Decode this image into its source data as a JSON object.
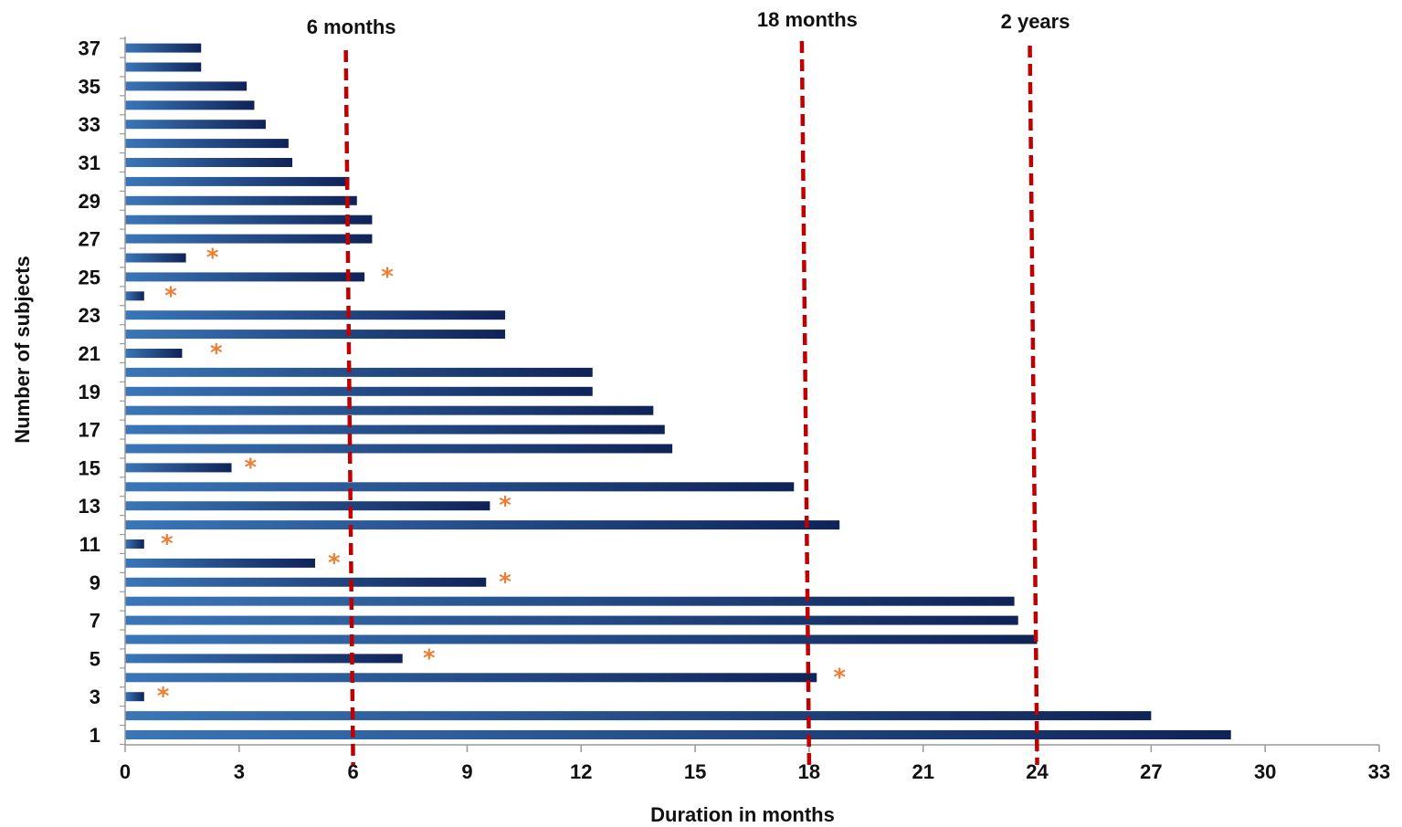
{
  "chart_data": {
    "type": "bar",
    "orientation": "horizontal",
    "xlabel": "Duration in months",
    "ylabel": "Number of subjects",
    "xlim": [
      0,
      33
    ],
    "xticks": [
      0,
      3,
      6,
      9,
      12,
      15,
      18,
      21,
      24,
      27,
      30,
      33
    ],
    "ytick_labels": [
      "1",
      "3",
      "5",
      "7",
      "9",
      "11",
      "13",
      "15",
      "17",
      "19",
      "21",
      "23",
      "25",
      "27",
      "29",
      "31",
      "33",
      "35",
      "37"
    ],
    "grid": false,
    "legend": "none",
    "categories": [
      1,
      2,
      3,
      4,
      5,
      6,
      7,
      8,
      9,
      10,
      11,
      12,
      13,
      14,
      15,
      16,
      17,
      18,
      19,
      20,
      21,
      22,
      23,
      24,
      25,
      26,
      27,
      28,
      29,
      30,
      31,
      32,
      33,
      34,
      35,
      36,
      37
    ],
    "values": [
      29.1,
      27.0,
      0.5,
      18.2,
      7.3,
      24.0,
      23.5,
      23.4,
      9.5,
      5.0,
      0.5,
      18.8,
      9.6,
      17.6,
      2.8,
      14.4,
      14.2,
      13.9,
      12.3,
      12.3,
      1.5,
      10.0,
      10.0,
      0.5,
      6.3,
      1.6,
      6.5,
      6.5,
      6.1,
      5.9,
      4.4,
      4.3,
      3.7,
      3.4,
      3.2,
      2.0,
      2.0
    ],
    "censored_marker": "*",
    "censored": [
      {
        "subject": 3,
        "x": 1.0
      },
      {
        "subject": 4,
        "x": 18.8
      },
      {
        "subject": 5,
        "x": 8.0
      },
      {
        "subject": 9,
        "x": 10.0
      },
      {
        "subject": 10,
        "x": 5.5
      },
      {
        "subject": 11,
        "x": 1.1
      },
      {
        "subject": 13,
        "x": 10.0
      },
      {
        "subject": 15,
        "x": 3.3
      },
      {
        "subject": 21,
        "x": 2.4
      },
      {
        "subject": 24,
        "x": 1.2
      },
      {
        "subject": 25,
        "x": 6.9
      },
      {
        "subject": 26,
        "x": 2.3
      }
    ],
    "reference_lines": [
      {
        "label": "6 months",
        "x": 6
      },
      {
        "label": "18 months",
        "x": 18
      },
      {
        "label": "2 years",
        "x": 24
      }
    ],
    "colors": {
      "bar_start": "#3a76b8",
      "bar_end": "#0f2358",
      "reference_line": "#c00000",
      "censored_marker": "#ee7d31",
      "axis": "#999999",
      "text": "#111111"
    }
  }
}
